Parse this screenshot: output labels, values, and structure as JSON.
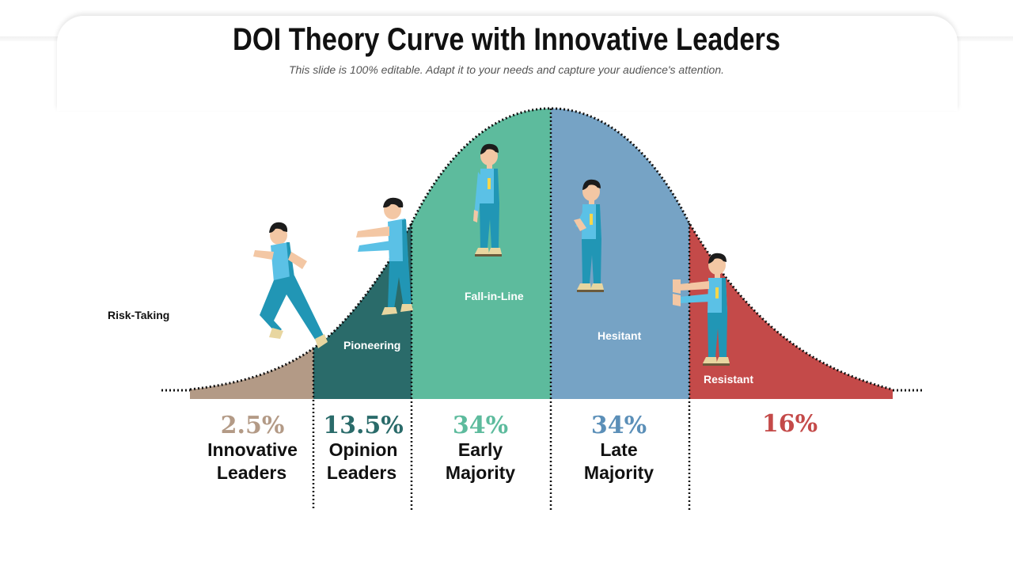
{
  "header": {
    "title": "DOI Theory Curve with Innovative Leaders",
    "subtitle": "This slide is 100% editable. Adapt it to your needs and capture your audience's attention."
  },
  "side_label": "Risk-Taking",
  "segments": [
    {
      "id": "innovative",
      "curve_label": "",
      "percent": "2.5%",
      "category_line1": "Innovative",
      "category_line2": "Leaders",
      "color": "#b39a86"
    },
    {
      "id": "opinion",
      "curve_label": "Pioneering",
      "percent": "13.5%",
      "category_line1": "Opinion",
      "category_line2": "Leaders",
      "color": "#2a6b6a"
    },
    {
      "id": "early",
      "curve_label": "Fall-in-Line",
      "percent": "34%",
      "category_line1": "Early",
      "category_line2": "Majority",
      "color": "#5dbb9d"
    },
    {
      "id": "late",
      "curve_label": "Hesitant",
      "percent": "34%",
      "category_line1": "Late",
      "category_line2": "Majority",
      "color": "#76a3c5"
    },
    {
      "id": "laggards",
      "curve_label": "Resistant",
      "percent": "16%",
      "category_line1": "",
      "category_line2": "",
      "color": "#c44a49"
    }
  ],
  "icons": [
    "running-man-icon",
    "pushing-man-icon",
    "standing-man-icon",
    "hesitant-man-icon",
    "resisting-man-icon"
  ],
  "colors": {
    "figure_shirt": "#5bc1e6",
    "figure_pants": "#2196b5",
    "figure_skin": "#f3c7a4",
    "figure_hair": "#1c1c1c",
    "figure_shoe": "#e8d6a0"
  }
}
